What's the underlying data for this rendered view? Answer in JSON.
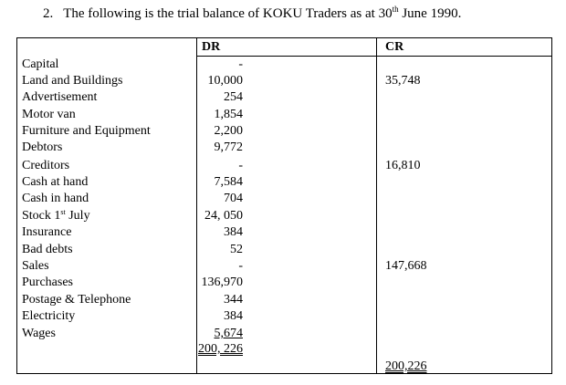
{
  "heading": {
    "number": "2.",
    "text_before": "The following is the trial balance of KOKU Traders as at 30",
    "sup": "th",
    "text_after": " June 1990."
  },
  "columns": {
    "dr": "DR",
    "cr": "CR"
  },
  "rows": [
    {
      "label": "Capital",
      "dr": "-",
      "cr": ""
    },
    {
      "label": "Land and Buildings",
      "dr": "10,000",
      "cr": "35,748"
    },
    {
      "label": "Advertisement",
      "dr": "254",
      "cr": ""
    },
    {
      "label": "Motor van",
      "dr": "1,854",
      "cr": ""
    },
    {
      "label": "Furniture and Equipment",
      "dr": "2,200",
      "cr": ""
    },
    {
      "label": "Debtors",
      "dr": "9,772",
      "cr": ""
    },
    {
      "label": "Creditors",
      "dr": "-",
      "cr": "16,810"
    },
    {
      "label": "Cash at hand",
      "dr": "7,584",
      "cr": ""
    },
    {
      "label": "Cash in hand",
      "dr": "704",
      "cr": ""
    },
    {
      "label_before": "Stock 1",
      "label_sup": "st",
      "label_after": " July",
      "dr": "24, 050",
      "cr": ""
    },
    {
      "label": "Insurance",
      "dr": "384",
      "cr": ""
    },
    {
      "label": "Bad debts",
      "dr": "52",
      "cr": ""
    },
    {
      "label": "Sales",
      "dr": "-",
      "cr": "147,668"
    },
    {
      "label": "Purchases",
      "dr": "136,970",
      "cr": ""
    },
    {
      "label": "Postage & Telephone",
      "dr": "344",
      "cr": ""
    },
    {
      "label": "Electricity",
      "dr": "384",
      "cr": ""
    },
    {
      "label": "Wages",
      "dr": "5,674",
      "cr": ""
    }
  ],
  "totals": {
    "dr": "200, 226",
    "cr": "200,226"
  }
}
